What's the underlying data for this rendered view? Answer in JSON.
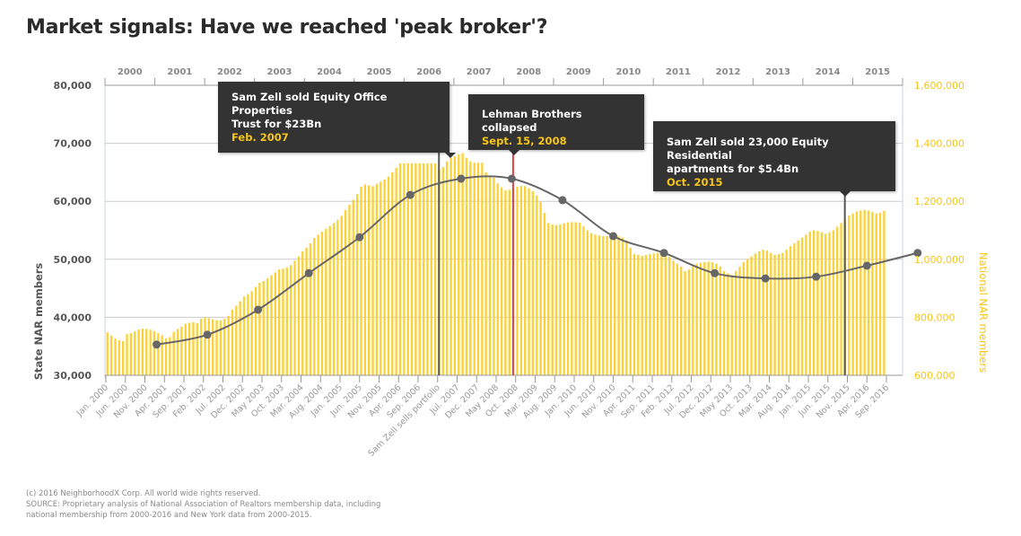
{
  "title": "Market signals: Have we reached 'peak broker'?",
  "footer": {
    "copyright": "(c) 2016 NeighborhoodX Corp. All world wide rights reserved.",
    "source_line1": "SOURCE: Proprietary analysis of National Association of Realtors membership data, including",
    "source_line2": "national membership from 2000-2016 and New York data from 2000-2015."
  },
  "annotations": [
    {
      "text_line1": "Sam Zell sold Equity Office Properties",
      "text_line2": "Trust for $23Bn",
      "date": "Feb. 2007",
      "month_index": 85,
      "line_color": "#555555"
    },
    {
      "text_line1": "Lehman Brothers collapsed",
      "text_line2": "",
      "date": "Sept. 15, 2008",
      "month_index": 104,
      "line_color": "#e04040"
    },
    {
      "text_line1": "Sam Zell sold 23,000 Equity Residential",
      "text_line2": "apartments for $5.4Bn",
      "date": "Oct. 2015",
      "month_index": 189,
      "line_color": "#555555"
    }
  ],
  "colors": {
    "bar": "#fcd134",
    "line": "#666666",
    "right_axis": "#f5c518",
    "grid": "#cccccc",
    "lehman": "#e04040",
    "text": "#555555"
  },
  "chart_data": {
    "type": "bar+line",
    "title": "Market signals: Have we reached 'peak broker'?",
    "xlabel": "",
    "ylabel_left": "State NAR members",
    "ylabel_right": "National NAR members",
    "ylim_left": [
      30000,
      80000
    ],
    "ylim_right": [
      600000,
      1600000
    ],
    "yticks_left": [
      "30,000",
      "40,000",
      "50,000",
      "60,000",
      "70,000",
      "80,000"
    ],
    "yticks_left_values": [
      30000,
      40000,
      50000,
      60000,
      70000,
      80000
    ],
    "yticks_right": [
      "600,000",
      "800,000",
      "1,000,000",
      "1,200,000",
      "1,400,000",
      "1,600,000"
    ],
    "yticks_right_values": [
      600000,
      800000,
      1000000,
      1200000,
      1400000,
      1600000
    ],
    "top_year_labels": [
      "2000",
      "2001",
      "2002",
      "2003",
      "2004",
      "2005",
      "2006",
      "2007",
      "2008",
      "2009",
      "2010",
      "2011",
      "2012",
      "2013",
      "2014",
      "2015"
    ],
    "x_tick_labels": [
      "Jan. 2000",
      "Jun. 2000",
      "Nov. 2000",
      "Apr. 2001",
      "Sep. 2001",
      "Feb. 2002",
      "Jul. 2002",
      "Dec. 2002",
      "May 2003",
      "Oct. 2003",
      "Mar. 2004",
      "Aug. 2004",
      "Jan. 2005",
      "Jun. 2005",
      "Nov. 2005",
      "Apr. 2006",
      "Sep. 2006",
      "Sam Zell sells portfolio",
      "Jul. 2007",
      "Dec. 2007",
      "May 2008",
      "Oct. 2008",
      "Mar. 2009",
      "Aug. 2009",
      "Jan. 2010",
      "Jun. 2010",
      "Nov. 2010",
      "Apr. 2011",
      "Sep. 2011",
      "Feb. 2012",
      "Jul. 2012",
      "Dec. 2012",
      "May 2013",
      "Oct. 2013",
      "Mar. 2014",
      "Aug. 2014",
      "Jan. 2015",
      "Jun. 2015",
      "Nov. 2015",
      "Apr. 2016",
      "Sep. 2016"
    ],
    "x_tick_month_step": 5,
    "x_range_months": [
      0,
      200
    ],
    "national_series": {
      "name": "National NAR members",
      "start": "Jan. 2000",
      "frequency": "monthly",
      "values": [
        748000,
        737000,
        727000,
        721000,
        718000,
        742000,
        745000,
        752000,
        758000,
        761000,
        760000,
        757000,
        752000,
        745000,
        738000,
        727000,
        732000,
        750000,
        760000,
        768000,
        778000,
        781000,
        783000,
        780000,
        795000,
        800000,
        797000,
        793000,
        790000,
        789000,
        795000,
        805000,
        826000,
        840000,
        855000,
        872000,
        880000,
        890000,
        905000,
        919000,
        925000,
        935000,
        945000,
        955000,
        965000,
        968000,
        972000,
        980000,
        995000,
        1010000,
        1027000,
        1040000,
        1055000,
        1074000,
        1085000,
        1095000,
        1105000,
        1115000,
        1125000,
        1136000,
        1150000,
        1170000,
        1188000,
        1205000,
        1225000,
        1250000,
        1258000,
        1255000,
        1252000,
        1260000,
        1268000,
        1275000,
        1285000,
        1300000,
        1315000,
        1331000,
        1331000,
        1331000,
        1331000,
        1331000,
        1331000,
        1331000,
        1331000,
        1331000,
        1331000,
        1310000,
        1318000,
        1338000,
        1350000,
        1355000,
        1362000,
        1366000,
        1350000,
        1338000,
        1333000,
        1333000,
        1333000,
        1300000,
        1285000,
        1281000,
        1262000,
        1248000,
        1238000,
        1240000,
        1245000,
        1250000,
        1253000,
        1252000,
        1245000,
        1235000,
        1220000,
        1198000,
        1160000,
        1125000,
        1120000,
        1118000,
        1120000,
        1124000,
        1127000,
        1128000,
        1128000,
        1126000,
        1115000,
        1100000,
        1090000,
        1085000,
        1082000,
        1080000,
        1080000,
        1080000,
        1082000,
        1080000,
        1075000,
        1065000,
        1040000,
        1018000,
        1015000,
        1012000,
        1015000,
        1018000,
        1020000,
        1022000,
        1020000,
        1015000,
        1008000,
        995000,
        985000,
        975000,
        959000,
        965000,
        975000,
        985000,
        988000,
        990000,
        992000,
        990000,
        985000,
        975000,
        960000,
        952000,
        945000,
        960000,
        975000,
        990000,
        1000000,
        1010000,
        1020000,
        1028000,
        1033000,
        1030000,
        1022000,
        1015000,
        1018000,
        1022000,
        1033000,
        1045000,
        1055000,
        1065000,
        1075000,
        1085000,
        1095000,
        1100000,
        1098000,
        1093000,
        1088000,
        1093000,
        1100000,
        1112000,
        1125000,
        1138000,
        1151000,
        1158000,
        1165000,
        1168000,
        1170000,
        1168000,
        1163000,
        1158000,
        1160000,
        1167000
      ]
    },
    "state_series": {
      "name": "State NAR members",
      "frequency": "annual (mid-year)",
      "x_months": [
        13,
        26,
        39,
        52,
        65,
        78,
        91,
        104,
        117,
        130,
        143,
        156,
        169,
        182,
        195,
        208
      ],
      "values": [
        35300,
        37000,
        41300,
        47600,
        53800,
        61100,
        63900,
        63900,
        60200,
        54000,
        51100,
        47600,
        46700,
        47000,
        48900,
        51100
      ]
    }
  }
}
